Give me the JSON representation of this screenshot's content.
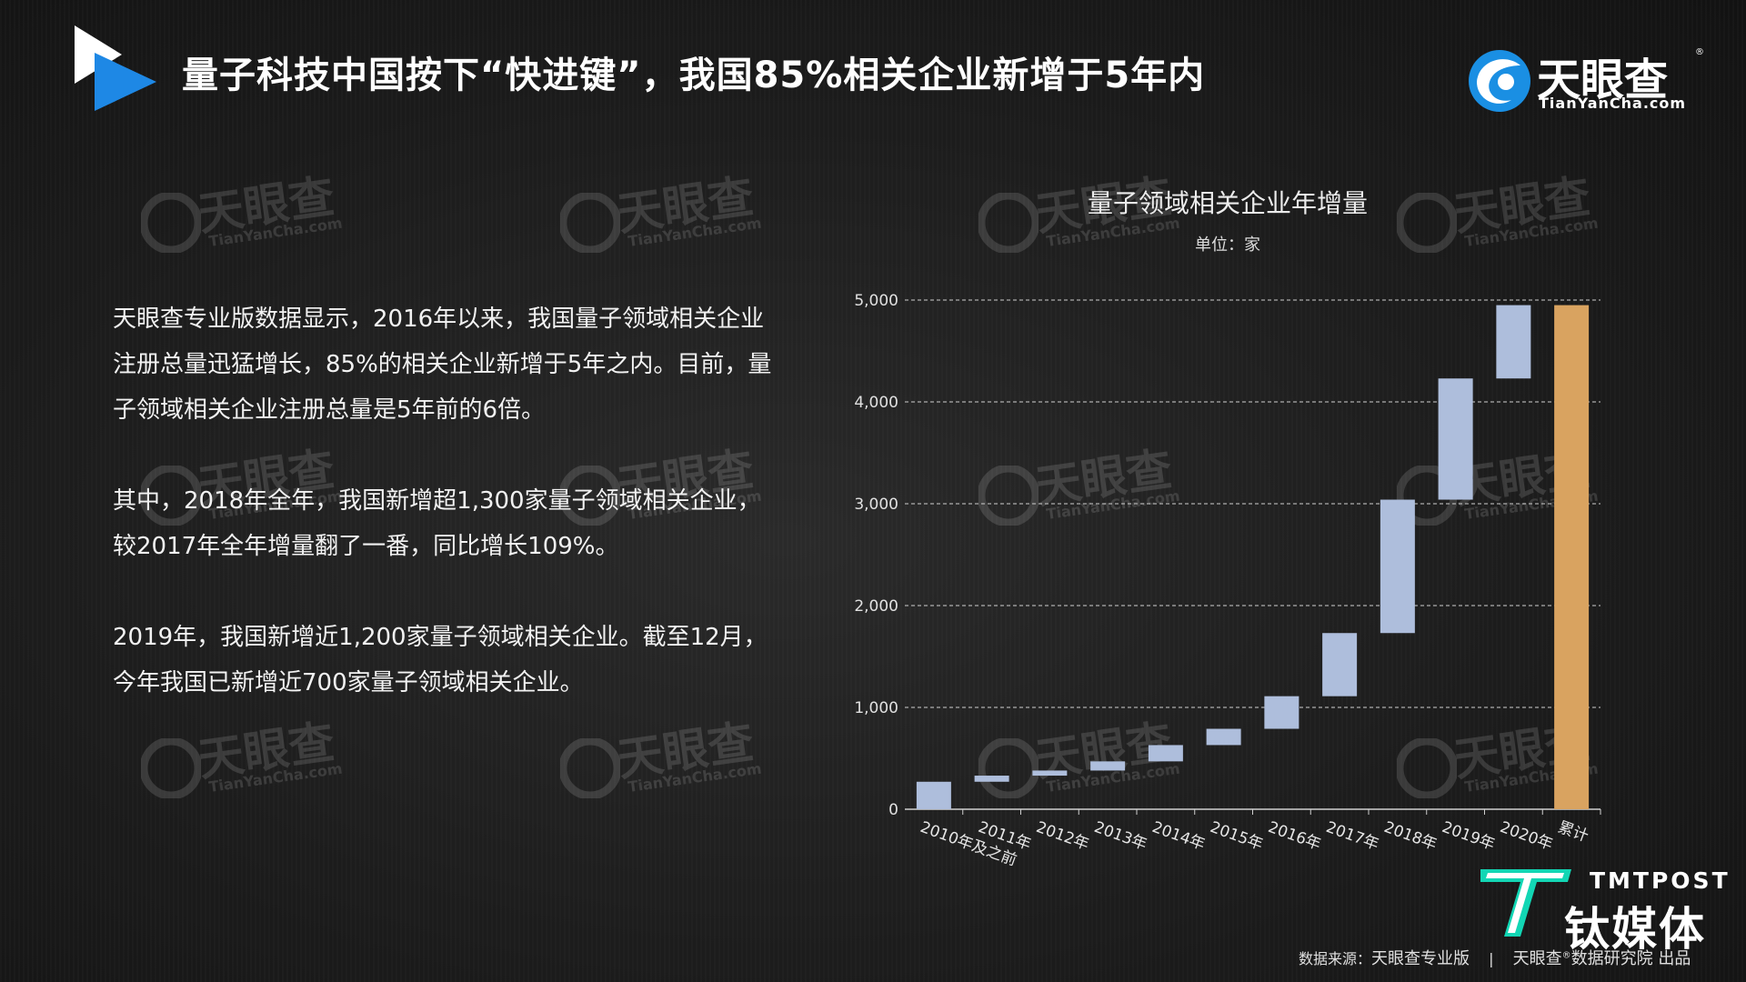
{
  "header": {
    "title": "量子科技中国按下“快进键”，我国85%相关企业新增于5年内",
    "brand_name": "天眼查",
    "brand_url": "TianYanCha.com",
    "brand_reg": "®"
  },
  "watermark": {
    "name": "天眼查",
    "url": "TianYanCha.com"
  },
  "body": {
    "paragraphs": [
      "天眼查专业版数据显示，2016年以来，我国量子领域相关企业注册总量迅猛增长，85%的相关企业新增于5年之内。目前，量子领域相关企业注册总量是5年前的6倍。",
      "其中，2018年全年，我国新增超1,300家量子领域相关企业，较2017年全年增量翻了一番，同比增长109%。",
      "2019年，我国新增近1,200家量子领域相关企业。截至12月，今年我国已新增近700家量子领域相关企业。"
    ]
  },
  "chart_data": {
    "type": "bar",
    "subtype": "waterfall",
    "title": "量子领域相关企业年增量",
    "unit": "单位：家",
    "categories": [
      "2010年及之前",
      "2011年",
      "2012年",
      "2013年",
      "2014年",
      "2015年",
      "2016年",
      "2017年",
      "2018年",
      "2019年",
      "2020年",
      "累计"
    ],
    "series": [
      {
        "values": [
          270,
          60,
          50,
          90,
          160,
          160,
          320,
          620,
          1310,
          1190,
          720,
          4950
        ]
      }
    ],
    "y_ticks": [
      "0",
      "1,000",
      "2,000",
      "3,000",
      "4,000",
      "5,000"
    ],
    "ylim": [
      0,
      5000
    ],
    "grid": true,
    "colors": {
      "increment": "#aebedc",
      "total": "#d9a360"
    }
  },
  "footer": {
    "tmt_en": "TMTPOST",
    "tmt_cn": "钛媒体",
    "source_label": "数据来源：",
    "source_name": "天眼查专业版",
    "separator": "|",
    "source_org": "天眼查",
    "source_org_reg": "®",
    "source_suffix": "数据研究院 出品"
  },
  "colors": {
    "play_white": "#ffffff",
    "play_blue": "#1e88e5",
    "brand_blue": "#1a8fe3",
    "tmt_teal": "#12d6b4"
  }
}
